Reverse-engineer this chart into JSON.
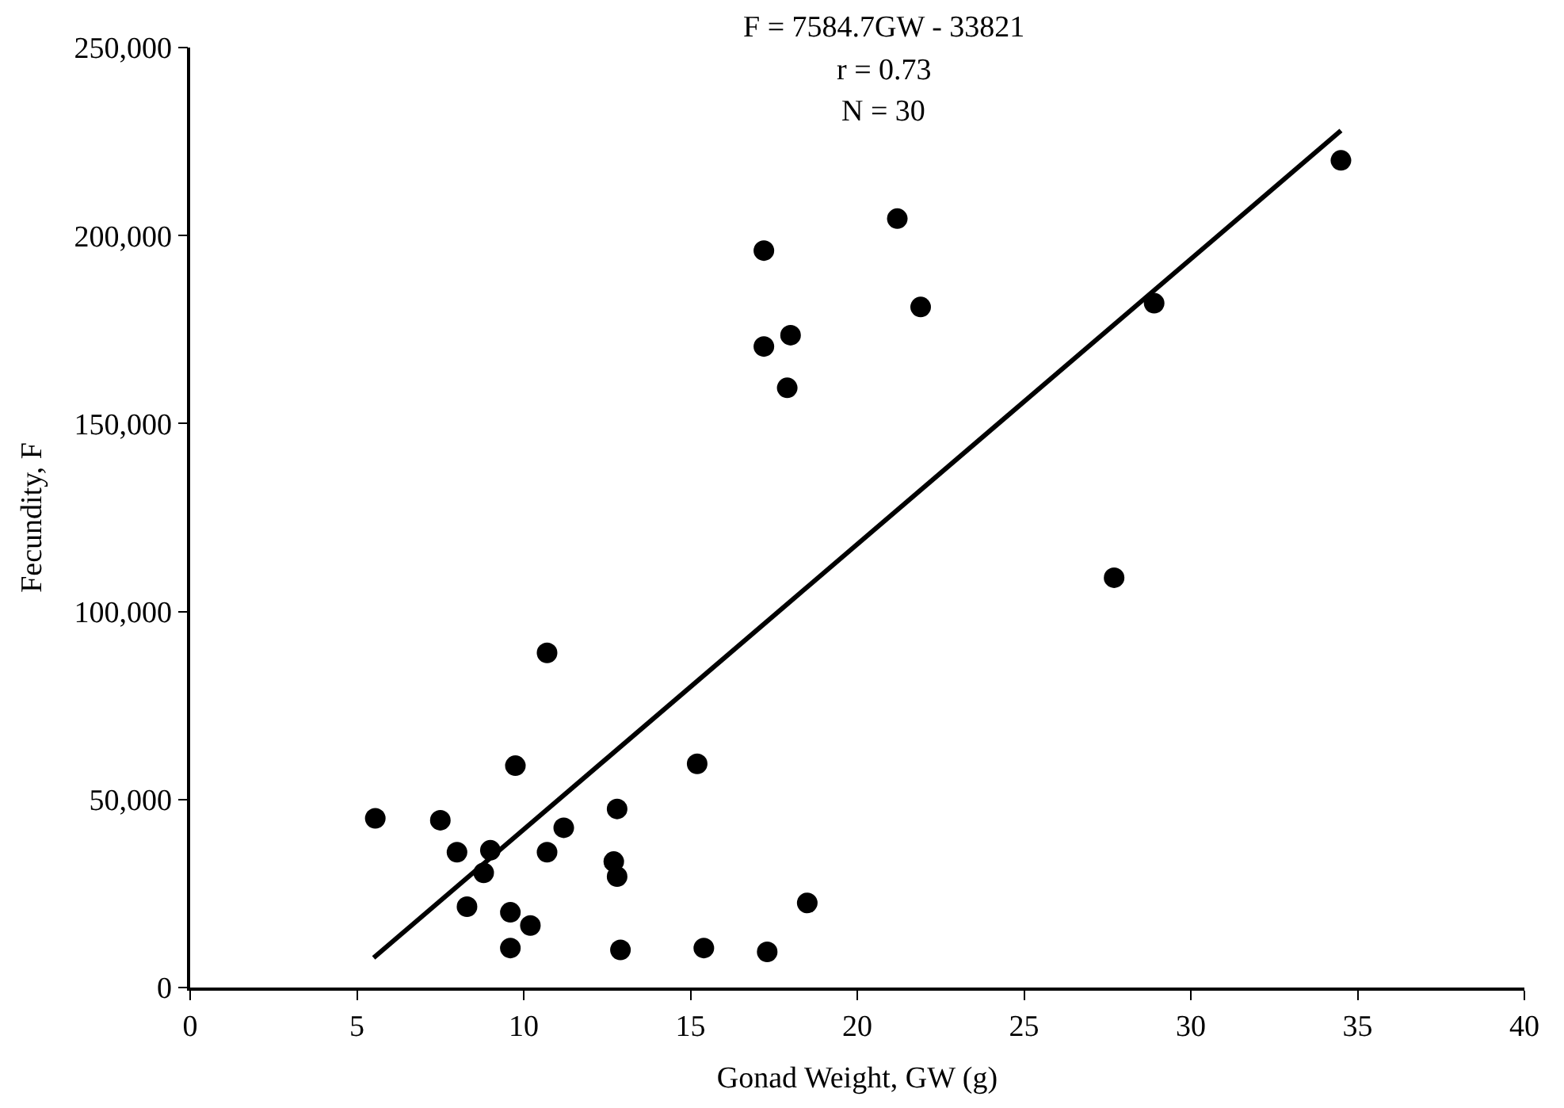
{
  "chart_data": {
    "type": "scatter",
    "xlabel": "Gonad Weight, GW (g)",
    "ylabel": "Fecundity, F",
    "annotations": [
      "F = 7584.7GW - 33821",
      "r = 0.73",
      "N = 30"
    ],
    "xlim": [
      0,
      40
    ],
    "xticks": [
      0,
      5,
      10,
      15,
      20,
      25,
      30,
      35,
      40
    ],
    "ylim": [
      0,
      250000
    ],
    "yticks": [
      {
        "value": 0,
        "label": "0"
      },
      {
        "value": 50000,
        "label": "50,000"
      },
      {
        "value": 100000,
        "label": "100,000"
      },
      {
        "value": 150000,
        "label": "150,000"
      },
      {
        "value": 200000,
        "label": "200,000"
      },
      {
        "value": 250000,
        "label": "250,000"
      }
    ],
    "grid": false,
    "series": [
      {
        "marker": "circle",
        "color": "#000000",
        "x": [
          10.7,
          9.75,
          15.2,
          5.55,
          7.5,
          12.8,
          11.2,
          8.0,
          9.0,
          10.7,
          8.8,
          12.7,
          12.8,
          8.3,
          9.6,
          10.2,
          9.6,
          12.9,
          15.4,
          17.3,
          18.5,
          21.2,
          17.2,
          21.9,
          18.0,
          17.2,
          17.9,
          28.9,
          27.7,
          34.5
        ],
        "values": [
          89000,
          59000,
          59500,
          45000,
          44500,
          47500,
          42500,
          36000,
          36500,
          36000,
          30500,
          33500,
          29500,
          21500,
          20000,
          16500,
          10500,
          10000,
          10500,
          9500,
          22500,
          204500,
          196000,
          181000,
          173500,
          170500,
          159500,
          182000,
          109000,
          220000
        ]
      },
      {
        "type": "line",
        "color": "#000000",
        "line_style": "solid",
        "x": [
          5.5,
          34.5
        ],
        "values": [
          7900,
          227900
        ]
      }
    ]
  }
}
